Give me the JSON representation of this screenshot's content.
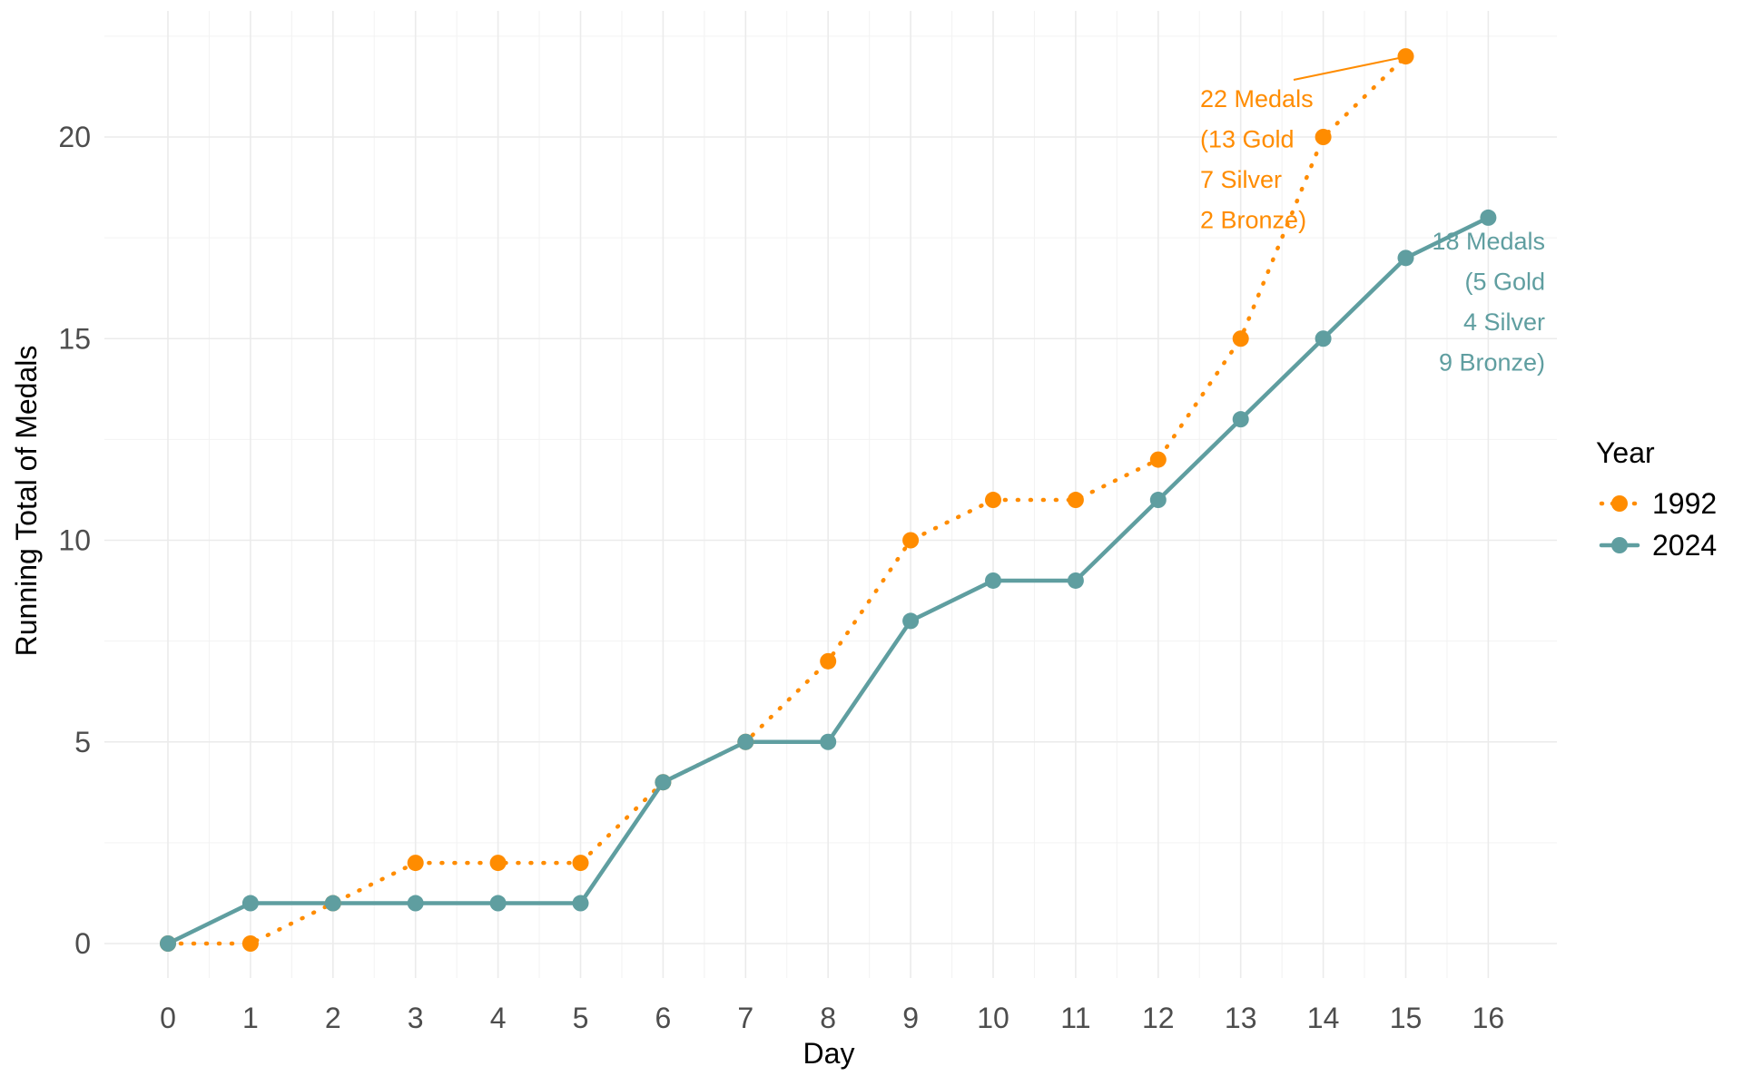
{
  "chart_data": {
    "type": "line",
    "xlabel": "Day",
    "ylabel": "Running Total of Medals",
    "xlim": [
      0,
      16
    ],
    "ylim": [
      0,
      22
    ],
    "x_ticks": [
      "0",
      "1",
      "2",
      "3",
      "4",
      "5",
      "6",
      "7",
      "8",
      "9",
      "10",
      "11",
      "12",
      "13",
      "14",
      "15",
      "16"
    ],
    "y_ticks": [
      "0",
      "5",
      "10",
      "15",
      "20"
    ],
    "grid": true,
    "legend": {
      "title": "Year",
      "placement": "right",
      "entries": [
        "1992",
        "2024"
      ]
    },
    "series": [
      {
        "name": "1992",
        "color": "#ff8c00",
        "line_style": "dotted",
        "x": [
          0,
          1,
          2,
          3,
          4,
          5,
          6,
          7,
          8,
          9,
          10,
          11,
          12,
          13,
          14,
          15
        ],
        "values": [
          0,
          0,
          1,
          2,
          2,
          2,
          4,
          5,
          7,
          10,
          11,
          11,
          12,
          15,
          20,
          22
        ]
      },
      {
        "name": "2024",
        "color": "#5f9ea0",
        "line_style": "solid",
        "x": [
          0,
          1,
          2,
          3,
          4,
          5,
          6,
          7,
          8,
          9,
          10,
          11,
          12,
          13,
          14,
          15,
          16
        ],
        "values": [
          0,
          1,
          1,
          1,
          1,
          1,
          4,
          5,
          5,
          8,
          9,
          9,
          11,
          13,
          15,
          17,
          18
        ]
      }
    ],
    "annotations": [
      {
        "series": "1992",
        "point": [
          15,
          22
        ],
        "lines": [
          "22 Medals",
          "(13 Gold",
          "7 Silver",
          "2 Bronze)"
        ]
      },
      {
        "series": "2024",
        "point": [
          16,
          18
        ],
        "lines": [
          "18 Medals",
          "(5 Gold",
          "4 Silver",
          "9 Bronze)"
        ]
      }
    ]
  }
}
